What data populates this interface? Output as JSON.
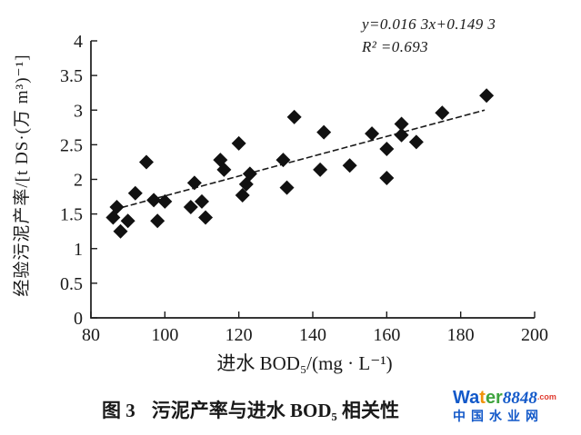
{
  "chart_data": {
    "type": "scatter",
    "title": "",
    "xlabel": "进水 BOD₅/(mg · L⁻¹)",
    "ylabel": "经验污泥产率/[t DS·(万 m³)⁻¹]",
    "xlim": [
      80,
      200
    ],
    "ylim": [
      0,
      4
    ],
    "xticks": [
      80,
      100,
      120,
      140,
      160,
      180,
      200
    ],
    "yticks": [
      0,
      0.5,
      1,
      1.5,
      2,
      2.5,
      3,
      3.5,
      4
    ],
    "grid": false,
    "legend": "none",
    "marker": "diamond",
    "marker_color": "#111111",
    "points": [
      [
        86,
        1.45
      ],
      [
        87,
        1.6
      ],
      [
        88,
        1.25
      ],
      [
        90,
        1.4
      ],
      [
        92,
        1.8
      ],
      [
        95,
        2.25
      ],
      [
        97,
        1.7
      ],
      [
        98,
        1.4
      ],
      [
        100,
        1.68
      ],
      [
        107,
        1.6
      ],
      [
        108,
        1.95
      ],
      [
        110,
        1.68
      ],
      [
        111,
        1.45
      ],
      [
        115,
        2.28
      ],
      [
        116,
        2.14
      ],
      [
        120,
        2.52
      ],
      [
        121,
        1.77
      ],
      [
        122,
        1.93
      ],
      [
        123,
        2.08
      ],
      [
        132,
        2.28
      ],
      [
        133,
        1.88
      ],
      [
        135,
        2.9
      ],
      [
        142,
        2.14
      ],
      [
        143,
        2.68
      ],
      [
        150,
        2.2
      ],
      [
        156,
        2.66
      ],
      [
        160,
        2.44
      ],
      [
        160,
        2.02
      ],
      [
        164,
        2.8
      ],
      [
        164,
        2.64
      ],
      [
        168,
        2.54
      ],
      [
        175,
        2.96
      ],
      [
        187,
        3.21
      ]
    ],
    "trendline": {
      "equation": "y=0.016 3x+0.149 3",
      "slope": 0.0163,
      "intercept": 0.1493,
      "r_squared": 0.693,
      "x_start": 86,
      "y_start": 1.56,
      "x_end": 186.5,
      "y_end": 3.0
    }
  },
  "annotation": {
    "equation": "y=0.016 3x+0.149 3",
    "r_squared": "R² =0.693"
  },
  "caption": {
    "figure_label": "图 3",
    "text": "污泥产率与进水 BOD₅ 相关性"
  },
  "watermark": {
    "wa": "Wa",
    "t": "t",
    "er": "er",
    "number": "8848",
    "dotcom": ".com",
    "subtitle": "中国水业网"
  }
}
